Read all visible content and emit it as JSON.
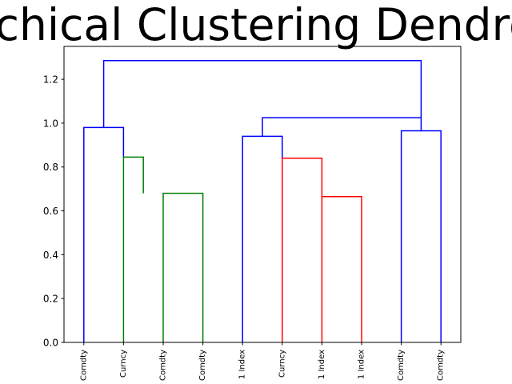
{
  "chart_data": {
    "type": "dendrogram",
    "title": "Hierarchical Clustering Dendrogram",
    "xlabel": "",
    "ylabel": "",
    "ylim": [
      0,
      1.35
    ],
    "yticks": [
      "0.0",
      "0.2",
      "0.4",
      "0.6",
      "0.8",
      "1.0",
      "1.2"
    ],
    "leaf_labels": [
      "Comdty",
      "Curncy",
      "Comdty",
      "Comdty",
      "1 Index",
      "Curncy",
      "1 Index",
      "1 Index",
      "Comdty",
      "Comdty"
    ],
    "grid": false,
    "colors": {
      "green": "#008000",
      "red": "#ff0000",
      "blue": "#0000ff"
    },
    "links": [
      {
        "x": [
          5,
          5,
          15,
          15
        ],
        "y": [
          0,
          0.98,
          0.98,
          0.845
        ],
        "color": "#0000ff"
      },
      {
        "x": [
          15,
          15,
          20,
          20
        ],
        "y": [
          0,
          0.845,
          0.845,
          0.68
        ],
        "color": "#008000"
      },
      {
        "x": [
          25,
          25,
          35,
          35
        ],
        "y": [
          0,
          0.68,
          0.68,
          0
        ],
        "color": "#008000"
      },
      {
        "x": [
          45,
          45,
          55,
          55
        ],
        "y": [
          0,
          0.94,
          0.94,
          0.84
        ],
        "color": "#0000ff"
      },
      {
        "x": [
          55,
          55,
          65,
          65
        ],
        "y": [
          0,
          0.84,
          0.84,
          0.665
        ],
        "color": "#ff0000"
      },
      {
        "x": [
          65,
          65,
          75,
          75
        ],
        "y": [
          0,
          0.665,
          0.665,
          0
        ],
        "color": "#ff0000"
      },
      {
        "x": [
          85,
          85,
          95,
          95
        ],
        "y": [
          0,
          0.965,
          0.965,
          0
        ],
        "color": "#0000ff"
      },
      {
        "x": [
          10,
          10,
          90,
          90
        ],
        "y": [
          0.98,
          1.285,
          1.285,
          1.025
        ],
        "color": "#0000ff"
      },
      {
        "x": [
          50,
          50,
          90,
          90
        ],
        "y": [
          0.94,
          1.025,
          1.025,
          0.965
        ],
        "color": "#0000ff"
      }
    ]
  }
}
